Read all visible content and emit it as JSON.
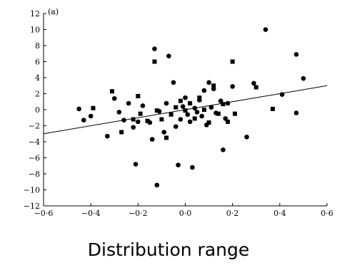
{
  "chart_data": {
    "type": "scatter",
    "title": "",
    "panel_label": "(a)",
    "xlabel": "Distribution range",
    "ylabel": "",
    "xlim": [
      -0.6,
      0.6
    ],
    "ylim": [
      -12,
      12
    ],
    "x_ticks": [
      -0.6,
      -0.4,
      -0.2,
      0.0,
      0.2,
      0.4,
      0.6
    ],
    "x_tick_labels": [
      "−0·6",
      "−0·4",
      "−0·2",
      "0·0",
      "0·2",
      "0·4",
      "0·6"
    ],
    "y_ticks": [
      -12,
      -10,
      -8,
      -6,
      -4,
      -2,
      0,
      2,
      4,
      6,
      8,
      10,
      12
    ],
    "y_tick_labels": [
      "−12",
      "−10",
      "−8",
      "−6",
      "−4",
      "−2",
      "0",
      "2",
      "4",
      "6",
      "8",
      "10",
      "12"
    ],
    "grid": false,
    "series": [
      {
        "marker": "circle",
        "points": [
          [
            -0.45,
            0.1
          ],
          [
            -0.43,
            -1.3
          ],
          [
            -0.4,
            -0.8
          ],
          [
            -0.33,
            -3.3
          ],
          [
            -0.3,
            1.4
          ],
          [
            -0.28,
            -0.3
          ],
          [
            -0.26,
            -1.3
          ],
          [
            -0.24,
            0.8
          ],
          [
            -0.22,
            -2.2
          ],
          [
            -0.21,
            -6.8
          ],
          [
            -0.2,
            -1.5
          ],
          [
            -0.18,
            0.5
          ],
          [
            -0.15,
            -1.6
          ],
          [
            -0.14,
            -3.7
          ],
          [
            -0.13,
            7.6
          ],
          [
            -0.12,
            -9.4
          ],
          [
            -0.11,
            -0.2
          ],
          [
            -0.09,
            -2.8
          ],
          [
            -0.08,
            0.8
          ],
          [
            -0.07,
            6.7
          ],
          [
            -0.05,
            3.4
          ],
          [
            -0.04,
            -2.1
          ],
          [
            -0.03,
            -6.9
          ],
          [
            -0.02,
            -1.2
          ],
          [
            -0.01,
            0.4
          ],
          [
            0.0,
            1.5
          ],
          [
            0.01,
            -0.6
          ],
          [
            0.02,
            -1.5
          ],
          [
            0.03,
            -7.2
          ],
          [
            0.04,
            0.2
          ],
          [
            0.05,
            -0.3
          ],
          [
            0.06,
            1.2
          ],
          [
            0.07,
            -0.8
          ],
          [
            0.08,
            2.4
          ],
          [
            0.09,
            -1.9
          ],
          [
            0.1,
            3.4
          ],
          [
            0.11,
            0.3
          ],
          [
            0.12,
            2.6
          ],
          [
            0.13,
            -0.4
          ],
          [
            0.15,
            1.1
          ],
          [
            0.16,
            -5.0
          ],
          [
            0.17,
            -1.1
          ],
          [
            0.18,
            0.8
          ],
          [
            0.2,
            2.9
          ],
          [
            0.26,
            -3.4
          ],
          [
            0.29,
            3.3
          ],
          [
            0.34,
            10.0
          ],
          [
            0.41,
            1.9
          ],
          [
            0.47,
            6.9
          ],
          [
            0.47,
            -0.4
          ],
          [
            0.5,
            3.9
          ]
        ]
      },
      {
        "marker": "square",
        "points": [
          [
            -0.39,
            0.2
          ],
          [
            -0.31,
            2.3
          ],
          [
            -0.27,
            -2.8
          ],
          [
            -0.22,
            -1.2
          ],
          [
            -0.2,
            1.7
          ],
          [
            -0.19,
            -0.5
          ],
          [
            -0.16,
            -1.4
          ],
          [
            -0.13,
            6.0
          ],
          [
            -0.12,
            -0.1
          ],
          [
            -0.1,
            -1.2
          ],
          [
            -0.08,
            -3.5
          ],
          [
            -0.06,
            -0.6
          ],
          [
            -0.04,
            0.3
          ],
          [
            -0.02,
            1.1
          ],
          [
            0.0,
            -0.1
          ],
          [
            0.02,
            0.8
          ],
          [
            0.04,
            -1.1
          ],
          [
            0.06,
            1.5
          ],
          [
            0.08,
            0.0
          ],
          [
            0.1,
            -1.6
          ],
          [
            0.12,
            3.0
          ],
          [
            0.14,
            -0.5
          ],
          [
            0.16,
            0.7
          ],
          [
            0.18,
            -1.5
          ],
          [
            0.2,
            6.0
          ],
          [
            0.21,
            -0.5
          ],
          [
            0.3,
            2.8
          ],
          [
            0.37,
            0.1
          ]
        ]
      }
    ],
    "fit_line": {
      "x": [
        -0.6,
        0.6
      ],
      "y": [
        -3.0,
        3.0
      ]
    }
  }
}
